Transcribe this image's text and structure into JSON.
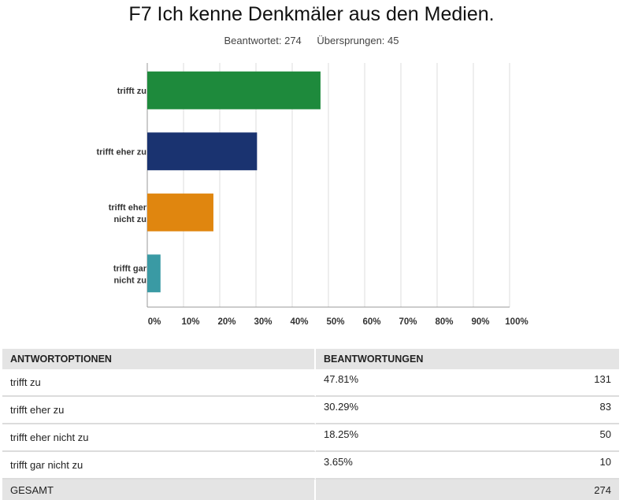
{
  "header": {
    "title": "F7 Ich kenne Denkmäler aus den Medien.",
    "answered": "Beantwortet: 274",
    "skipped": "Übersprungen: 45"
  },
  "chart_data": {
    "type": "bar",
    "orientation": "horizontal",
    "categories": [
      "trifft zu",
      "trifft eher zu",
      "trifft eher nicht zu",
      "trifft gar nicht zu"
    ],
    "values": [
      47.81,
      30.29,
      18.25,
      3.65
    ],
    "colors": [
      "#1e8a3c",
      "#1a3370",
      "#e0860f",
      "#3a9aa4"
    ],
    "xlim": [
      0,
      100
    ],
    "x_ticks": [
      "0%",
      "10%",
      "20%",
      "30%",
      "40%",
      "50%",
      "60%",
      "70%",
      "80%",
      "90%",
      "100%"
    ],
    "grid": true
  },
  "table": {
    "headers": [
      "ANTWORTOPTIONEN",
      "BEANTWORTUNGEN"
    ],
    "rows": [
      {
        "label": "trifft zu",
        "percent": "47.81%",
        "count": "131"
      },
      {
        "label": "trifft eher zu",
        "percent": "30.29%",
        "count": "83"
      },
      {
        "label": "trifft eher nicht zu",
        "percent": "18.25%",
        "count": "50"
      },
      {
        "label": "trifft gar nicht zu",
        "percent": "3.65%",
        "count": "10"
      }
    ],
    "total_label": "GESAMT",
    "total_count": "274"
  }
}
